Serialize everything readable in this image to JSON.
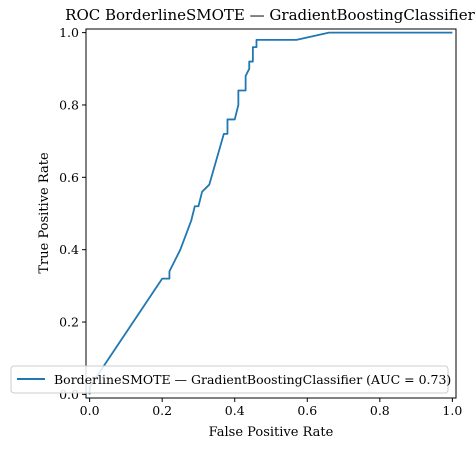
{
  "chart_data": {
    "type": "line",
    "title": "ROC BorderlineSMOTE — GradientBoostingClassifier",
    "xlabel": "False Positive Rate",
    "ylabel": "True Positive Rate",
    "xlim": [
      -0.01,
      1.01
    ],
    "ylim": [
      -0.01,
      1.01
    ],
    "xticks": [
      "0.0",
      "0.2",
      "0.4",
      "0.6",
      "0.8",
      "1.0"
    ],
    "yticks": [
      "0.0",
      "0.2",
      "0.4",
      "0.6",
      "0.8",
      "1.0"
    ],
    "grid": false,
    "legend_position": "lower-right",
    "series": [
      {
        "name": "BorderlineSMOTE — GradientBoostingClassifier (AUC = 0.73)",
        "color": "#1f77b4",
        "x": [
          0.0,
          0.0,
          0.2,
          0.22,
          0.22,
          0.25,
          0.28,
          0.29,
          0.3,
          0.31,
          0.32,
          0.33,
          0.37,
          0.38,
          0.38,
          0.4,
          0.41,
          0.41,
          0.43,
          0.43,
          0.44,
          0.44,
          0.45,
          0.45,
          0.46,
          0.46,
          0.57,
          0.66,
          1.0
        ],
        "y": [
          0.0,
          0.02,
          0.32,
          0.32,
          0.34,
          0.4,
          0.48,
          0.52,
          0.52,
          0.56,
          0.57,
          0.58,
          0.72,
          0.72,
          0.76,
          0.76,
          0.8,
          0.84,
          0.84,
          0.88,
          0.9,
          0.92,
          0.92,
          0.96,
          0.96,
          0.98,
          0.98,
          1.0,
          1.0
        ]
      }
    ]
  }
}
